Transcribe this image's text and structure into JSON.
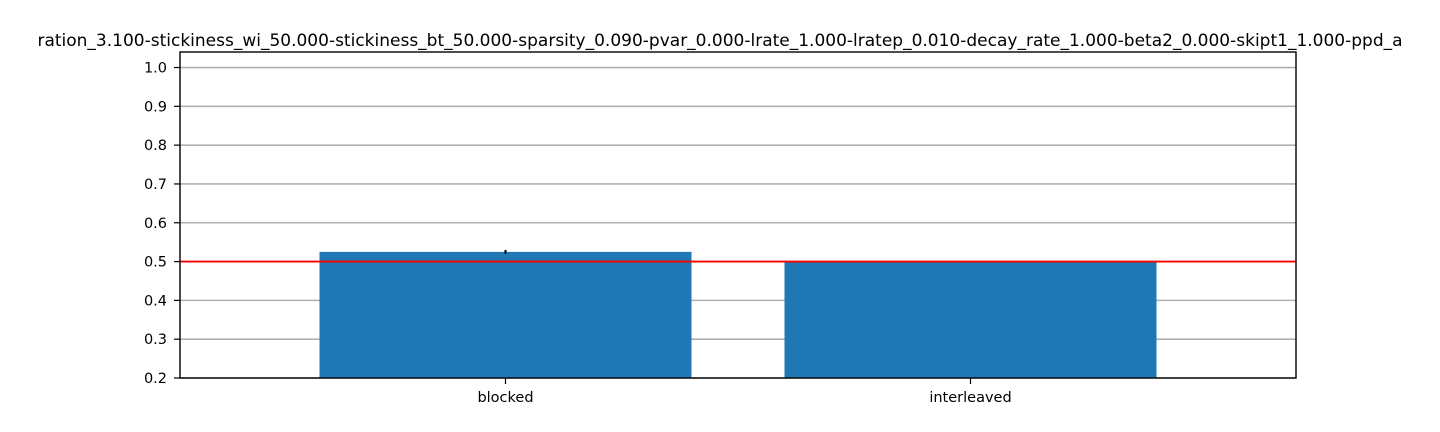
{
  "chart_data": {
    "type": "bar",
    "title": "ration_3.100-stickiness_wi_50.000-stickiness_bt_50.000-sparsity_0.090-pvar_0.000-lrate_1.000-lratep_0.010-decay_rate_1.000-beta2_0.000-skipt1_1.000-ppd_a",
    "categories": [
      "blocked",
      "interleaved"
    ],
    "values": [
      0.525,
      0.5
    ],
    "error": [
      0.005,
      0.0
    ],
    "ylim": [
      0.2,
      1.04
    ],
    "yticks": [
      "0.2",
      "0.3",
      "0.4",
      "0.5",
      "0.6",
      "0.7",
      "0.8",
      "0.9",
      "1.0"
    ],
    "reference_line": 0.5,
    "grid": "y",
    "xlabel": "",
    "ylabel": "",
    "colors": {
      "bar": "#1f77b4",
      "reference_line": "#ff0000",
      "grid": "#b0b0b0",
      "axis": "#000000"
    }
  }
}
